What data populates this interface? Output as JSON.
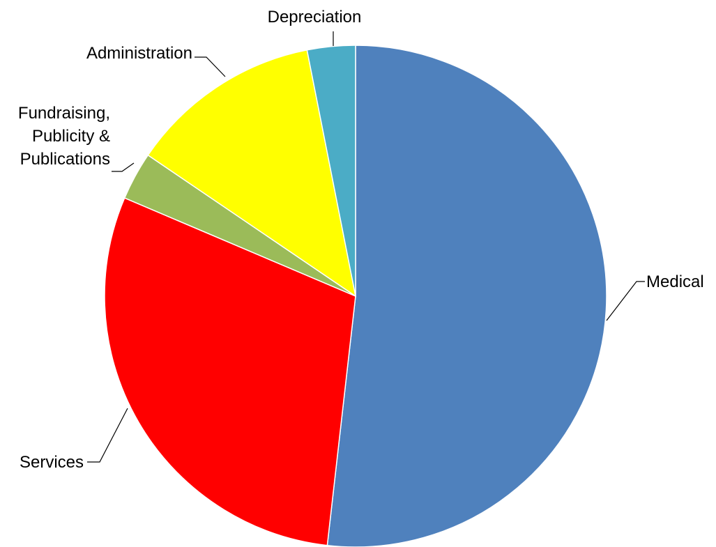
{
  "chart_data": {
    "type": "pie",
    "title": "",
    "start_angle_deg": 0,
    "direction": "clockwise",
    "legend": "none",
    "slices": [
      {
        "label": "Medical",
        "value": 51.8,
        "color": "#4F81BD"
      },
      {
        "label": "Services",
        "value": 29.6,
        "color": "#FF0000"
      },
      {
        "label": "Fundraising,\nPublicity &\nPublications",
        "value": 3.1,
        "color": "#9BBB59"
      },
      {
        "label": "Administration",
        "value": 12.4,
        "color": "#FFFF00"
      },
      {
        "label": "Depreciation",
        "value": 3.1,
        "color": "#4BACC6"
      }
    ]
  }
}
